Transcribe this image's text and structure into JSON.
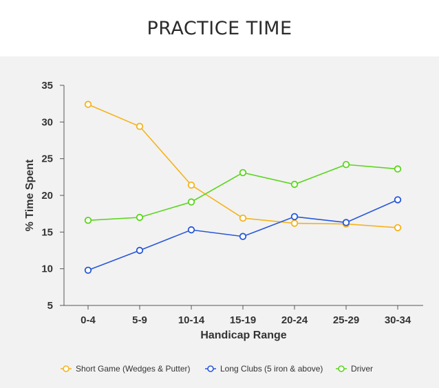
{
  "title": "PRACTICE TIME",
  "colors": {
    "background": "#f2f2f2",
    "axis": "#555555"
  },
  "chart_data": {
    "type": "line",
    "categories": [
      "0-4",
      "5-9",
      "10-14",
      "15-19",
      "20-24",
      "25-29",
      "30-34"
    ],
    "xlabel": "Handicap Range",
    "ylabel": "% Time Spent",
    "ylim": [
      5,
      35
    ],
    "yticks": [
      5,
      10,
      15,
      20,
      25,
      30,
      35
    ],
    "grid": false,
    "legend_position": "bottom",
    "series": [
      {
        "name": "Short Game (Wedges & Putter)",
        "color": "#f5b31b",
        "values": [
          32.4,
          29.4,
          21.4,
          16.9,
          16.2,
          16.1,
          15.6
        ]
      },
      {
        "name": "Long Clubs (5 iron & above)",
        "color": "#2656d9",
        "values": [
          9.8,
          12.5,
          15.3,
          14.4,
          17.1,
          16.3,
          19.4
        ]
      },
      {
        "name": "Driver",
        "color": "#5ad51b",
        "values": [
          16.6,
          17.0,
          19.1,
          23.1,
          21.5,
          24.2,
          23.6
        ]
      }
    ]
  }
}
